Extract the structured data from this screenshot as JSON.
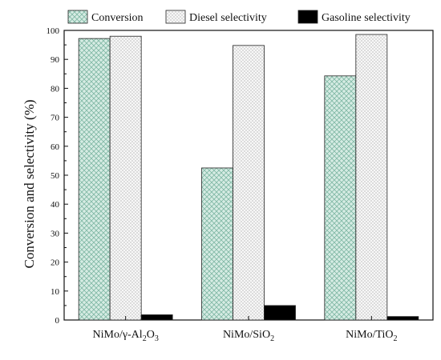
{
  "chart_data": {
    "type": "bar",
    "categories": [
      {
        "base": "NiMo/γ-Al",
        "sub": "2",
        "mid": "O",
        "sub2": "3"
      },
      {
        "base": "NiMo/SiO",
        "sub": "2",
        "mid": "",
        "sub2": ""
      },
      {
        "base": "NiMo/TiO",
        "sub": "2",
        "mid": "",
        "sub2": ""
      }
    ],
    "series": [
      {
        "name": "Conversion",
        "values": [
          97.2,
          52.5,
          84.3
        ],
        "color": "#cfe7de",
        "pattern": "crosshatch"
      },
      {
        "name": "Diesel selectivity",
        "values": [
          98.0,
          94.8,
          98.6
        ],
        "color": "#f3f3f3",
        "pattern": "dots"
      },
      {
        "name": "Gasoline selectivity",
        "values": [
          1.8,
          5.0,
          1.2
        ],
        "color": "#000000",
        "pattern": "solid"
      }
    ],
    "ylabel": "Conversion and selectivity (%)",
    "xlabel": "",
    "ylim": [
      0,
      100
    ],
    "yticks": [
      0,
      10,
      20,
      30,
      40,
      50,
      60,
      70,
      80,
      90,
      100
    ],
    "legend_position": "top",
    "grid": false
  }
}
